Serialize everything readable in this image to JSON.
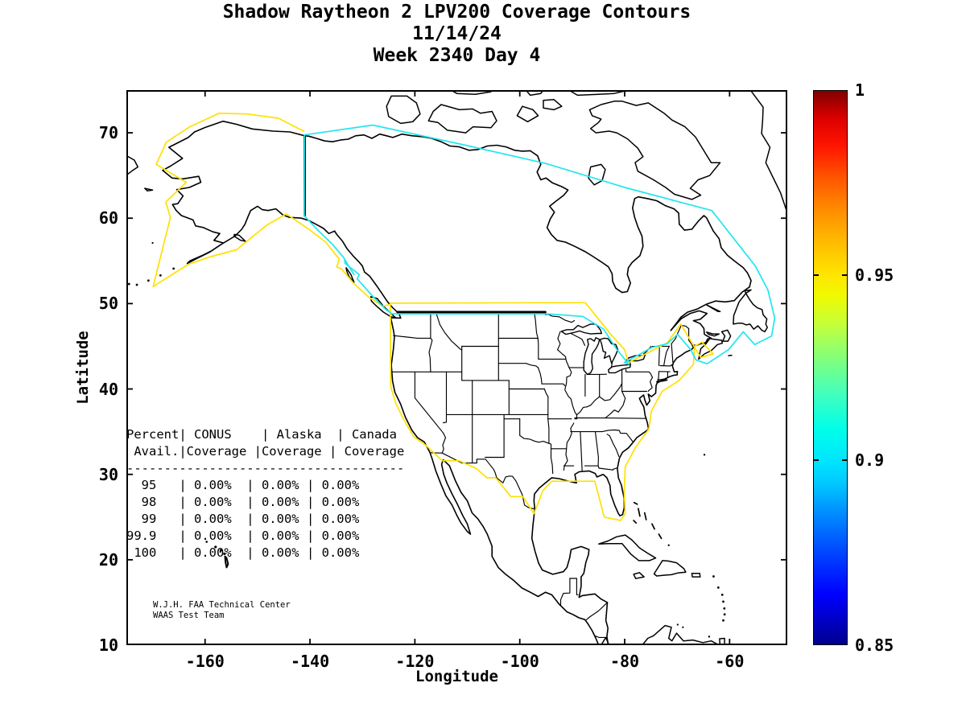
{
  "title": {
    "line1": "Shadow Raytheon 2 LPV200 Coverage Contours",
    "line2": "11/14/24",
    "line3": "Week 2340 Day 4"
  },
  "axes": {
    "xlabel": "Longitude",
    "ylabel": "Latitude",
    "x_ticks": [
      -160,
      -140,
      -120,
      -100,
      -80,
      -60
    ],
    "y_ticks": [
      70,
      60,
      50,
      40,
      30,
      20,
      10
    ],
    "x_range": [
      -175,
      -49
    ],
    "y_range": [
      10,
      75
    ]
  },
  "colorbar": {
    "colormap": "jet",
    "min": 0.85,
    "max": 1,
    "tick_values": [
      1,
      0.95,
      0.9,
      0.85
    ],
    "tick_labels": [
      "1",
      "0.95",
      "0.9",
      "0.85"
    ]
  },
  "coverage_table": {
    "header_line1": "Percent| CONUS    | Alaska  | Canada",
    "header_line2": " Avail.|Coverage |Coverage | Coverage",
    "rows": [
      {
        "avail": "95",
        "conus": "0.00%",
        "alaska": "0.00%",
        "canada": "0.00%"
      },
      {
        "avail": "98",
        "conus": "0.00%",
        "alaska": "0.00%",
        "canada": "0.00%"
      },
      {
        "avail": "99",
        "conus": "0.00%",
        "alaska": "0.00%",
        "canada": "0.00%"
      },
      {
        "avail": "99.9",
        "conus": "0.00%",
        "alaska": "0.00%",
        "canada": "0.00%"
      },
      {
        "avail": "100",
        "conus": "0.00%",
        "alaska": "0.00%",
        "canada": "0.00%"
      }
    ]
  },
  "credit": {
    "line1": "W.J.H. FAA Technical Center",
    "line2": "WAAS Test Team"
  },
  "chart_data": {
    "type": "contour-map",
    "region": "North America",
    "title": "Shadow Raytheon 2 LPV200 Coverage Contours",
    "date": "11/14/24",
    "gps_week": 2340,
    "gps_day": 4,
    "xlabel": "Longitude",
    "ylabel": "Latitude",
    "xlim": [
      -175,
      -49
    ],
    "ylim": [
      10,
      75
    ],
    "colorbar_range": [
      0.85,
      1
    ],
    "contour_levels": [
      {
        "level": 0.95,
        "color": "#FFE100"
      },
      {
        "level": 0.9,
        "color": "#22E6EE"
      }
    ],
    "contours": [
      {
        "level": 0.95,
        "color": "#FFE100",
        "closed": false,
        "points": [
          [
            -141.2,
            70.2
          ],
          [
            -146,
            71.7
          ],
          [
            -152,
            72.2
          ],
          [
            -157.3,
            72.3
          ],
          [
            -162.9,
            70.7
          ],
          [
            -167.4,
            68.9
          ],
          [
            -169.3,
            66.3
          ],
          [
            -163.6,
            64.2
          ],
          [
            -167.5,
            61.9
          ],
          [
            -166.6,
            60.1
          ],
          [
            -168.6,
            55.2
          ],
          [
            -169.9,
            52
          ],
          [
            -163.2,
            54.6
          ],
          [
            -158.9,
            55.5
          ],
          [
            -154,
            56.3
          ],
          [
            -148.2,
            59.2
          ],
          [
            -144.5,
            60.5
          ],
          [
            -140.4,
            58.8
          ],
          [
            -137,
            57.2
          ],
          [
            -134.4,
            55.2
          ],
          [
            -134.9,
            54.3
          ],
          [
            -133.9,
            54
          ],
          [
            -131.7,
            52.4
          ],
          [
            -128.9,
            50.8
          ],
          [
            -126.2,
            49.7
          ],
          [
            -124.7,
            49.9
          ],
          [
            -124.7,
            50.05
          ],
          [
            -95.3,
            50.1
          ],
          [
            -87.5,
            50.1
          ],
          [
            -82.4,
            46.2
          ],
          [
            -80,
            44.6
          ],
          [
            -79.3,
            43.1
          ],
          [
            -77.6,
            43.6
          ],
          [
            -75.4,
            44.3
          ],
          [
            -71.9,
            45.4
          ],
          [
            -69.3,
            47.6
          ],
          [
            -67,
            45.2
          ],
          [
            -65.5,
            43.7
          ],
          [
            -63.1,
            44.1
          ],
          [
            -65.3,
            45.5
          ],
          [
            -66.7,
            45
          ],
          [
            -66.9,
            42.9
          ],
          [
            -69.6,
            41
          ],
          [
            -72.9,
            39.7
          ],
          [
            -74.9,
            37.4
          ],
          [
            -75.4,
            35.3
          ],
          [
            -77.9,
            33.2
          ],
          [
            -79.9,
            30.9
          ],
          [
            -80.1,
            28
          ],
          [
            -79.9,
            25.4
          ],
          [
            -80.8,
            24.6
          ],
          [
            -83.9,
            25
          ],
          [
            -85.7,
            29.2
          ],
          [
            -93.9,
            29.2
          ],
          [
            -95.6,
            28.1
          ],
          [
            -97.3,
            25.4
          ],
          [
            -99.4,
            27.4
          ],
          [
            -101.7,
            27.4
          ],
          [
            -104.6,
            29.6
          ],
          [
            -106.3,
            29.6
          ],
          [
            -108.3,
            30.7
          ],
          [
            -111.6,
            31.6
          ],
          [
            -114.8,
            31.6
          ],
          [
            -117.9,
            33.4
          ],
          [
            -120.2,
            34.4
          ],
          [
            -122.2,
            36.5
          ],
          [
            -123.7,
            38.4
          ],
          [
            -124.6,
            40.3
          ],
          [
            -124.65,
            44
          ],
          [
            -124.65,
            48
          ],
          [
            -124.7,
            50.05
          ]
        ]
      },
      {
        "level": 0.9,
        "color": "#22E6EE",
        "closed": true,
        "points": [
          [
            -141.05,
            69.75
          ],
          [
            -128,
            70.9
          ],
          [
            -110,
            68.5
          ],
          [
            -95,
            66.4
          ],
          [
            -80,
            63.6
          ],
          [
            -63.4,
            60.9
          ],
          [
            -55.1,
            54.4
          ],
          [
            -52.7,
            51.6
          ],
          [
            -51.4,
            48.3
          ],
          [
            -52,
            46.2
          ],
          [
            -55.2,
            45.2
          ],
          [
            -57.4,
            46.7
          ],
          [
            -60.2,
            44.6
          ],
          [
            -64.3,
            42.95
          ],
          [
            -66.4,
            43.4
          ],
          [
            -67.4,
            44.6
          ],
          [
            -69.9,
            46.4
          ],
          [
            -71.9,
            45.3
          ],
          [
            -74.9,
            44.85
          ],
          [
            -77.6,
            43.9
          ],
          [
            -80.1,
            43.1
          ],
          [
            -79.2,
            42.9
          ],
          [
            -81.6,
            44.7
          ],
          [
            -84,
            47
          ],
          [
            -88,
            48.5
          ],
          [
            -95,
            48.8
          ],
          [
            -124.4,
            48.8
          ],
          [
            -125.5,
            49.3
          ],
          [
            -127.8,
            50.7
          ],
          [
            -131,
            52.9
          ],
          [
            -130.6,
            53.4
          ],
          [
            -133.3,
            54.7
          ],
          [
            -133.4,
            55.1
          ],
          [
            -131.6,
            53.4
          ],
          [
            -133.6,
            55.4
          ],
          [
            -135.8,
            57
          ],
          [
            -138.5,
            58.6
          ],
          [
            -141.1,
            60.3
          ],
          [
            -141.05,
            69.75
          ]
        ]
      }
    ]
  }
}
